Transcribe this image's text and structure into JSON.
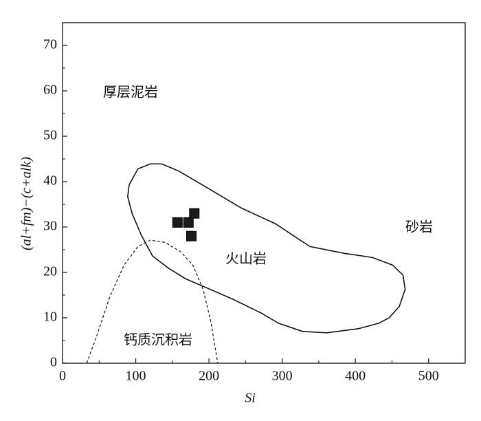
{
  "chart_data": {
    "type": "scatter",
    "xlabel": "Si",
    "ylabel": "(al+fm)−(c+alk)",
    "x": [
      157,
      172,
      180,
      176
    ],
    "values": [
      31,
      31,
      33,
      28
    ],
    "color": "#1a1a1a",
    "xlim": [
      0,
      550
    ],
    "ylim": [
      0,
      75
    ],
    "xticks": [
      0,
      100,
      200,
      300,
      400,
      500
    ],
    "yticks": [
      0,
      10,
      20,
      30,
      40,
      50,
      60,
      70
    ],
    "annotations": [
      "厚层泥岩",
      "砂岩",
      "火山岩",
      "钙质沉积岩"
    ],
    "boundaries": [
      {
        "line_style": "solid",
        "x": [
          91,
          103,
          120,
          135.5,
          159,
          197,
          244,
          291,
          319,
          338,
          385,
          423,
          451,
          465,
          468,
          460,
          446,
          432,
          404,
          361,
          328,
          295,
          272,
          234,
          197,
          168,
          145,
          123,
          107,
          95,
          89,
          91
        ],
        "y": [
          39.3,
          42.8,
          43.9,
          43.9,
          42.3,
          38.7,
          34.2,
          30.7,
          27.7,
          25.7,
          24.2,
          23.3,
          21.6,
          19.4,
          16.3,
          12.5,
          10,
          8.8,
          7.6,
          6.7,
          7,
          8.8,
          11,
          14,
          16.6,
          18.6,
          20.9,
          23.6,
          28.4,
          33,
          36.7,
          39.3
        ]
      },
      {
        "line_style": "dashed",
        "x": [
          33,
          46,
          65,
          84,
          103,
          120,
          140,
          161,
          178,
          192,
          203,
          212
        ],
        "y": [
          0,
          5.7,
          14.8,
          21.6,
          25.7,
          27.1,
          26.6,
          24.6,
          21.6,
          16.3,
          8.8,
          0
        ]
      }
    ]
  }
}
